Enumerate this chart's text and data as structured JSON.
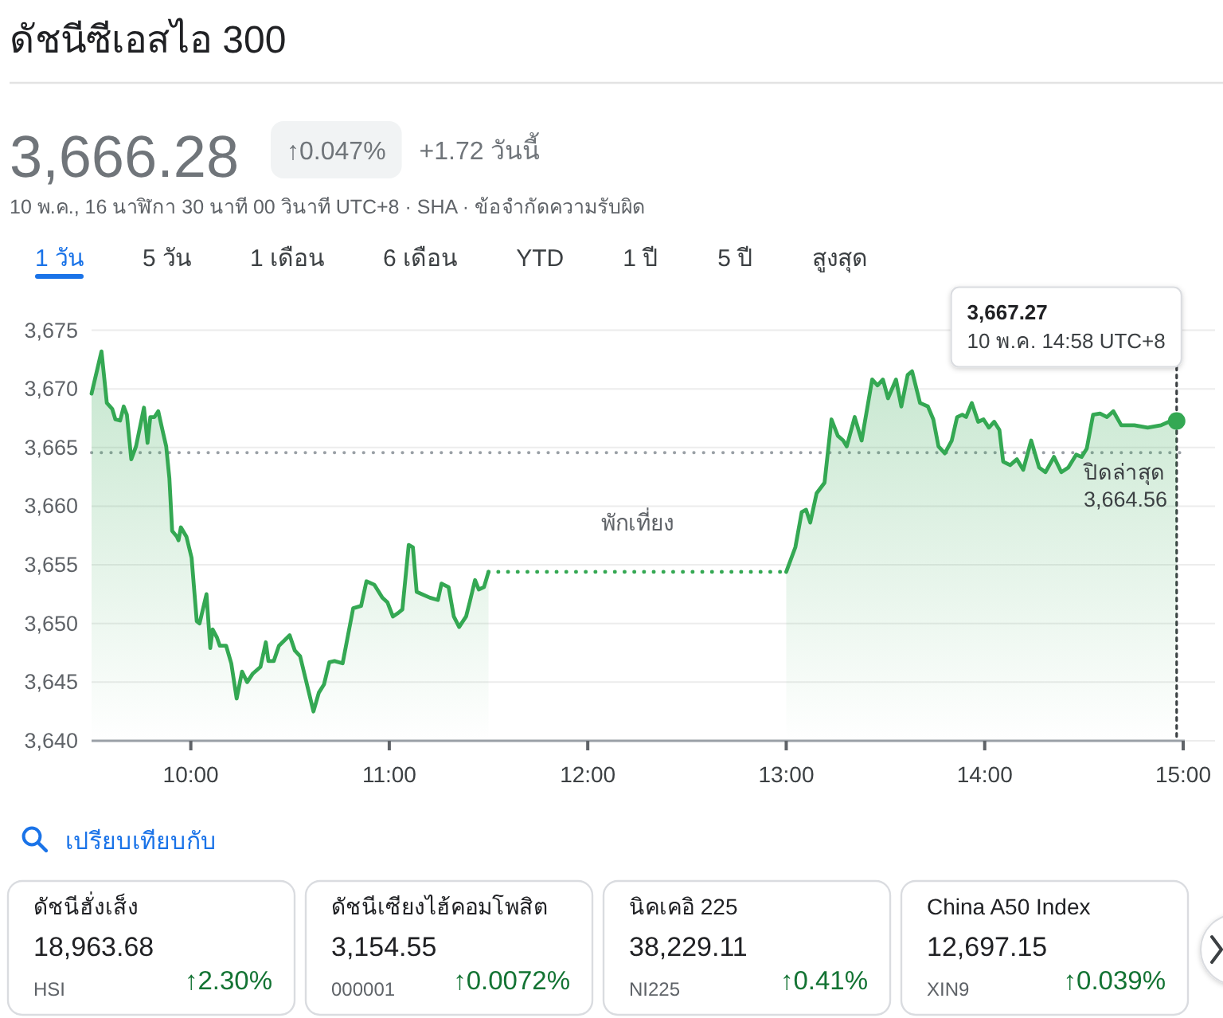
{
  "chart_data": [
    {
      "type": "area",
      "title": "ดัชนีซีเอสไอ 300",
      "annotations": [
        "3,666.28",
        "↑0.047%",
        "+1.72 วันนี้",
        "10 พ.ค., 16 นาฬิกา 30 นาที 00 วินาที UTC+8 · SHA · ข้อจำกัดความรับผิด",
        "1 วัน",
        "5 วัน",
        "1 เดือน",
        "6 เดือน",
        "YTD",
        "1 ปี",
        "5 ปี",
        "สูงสุด",
        "พักเที่ยง",
        "3,667.27\n10 พ.ค. 14:58 UTC+8"
      ],
      "xlim": [
        9.5,
        15
      ],
      "xticks": [
        {
          "value": 10,
          "label": "10:00"
        },
        {
          "value": 11,
          "label": "11:00"
        },
        {
          "value": 12,
          "label": "12:00"
        },
        {
          "value": 13,
          "label": "13:00"
        },
        {
          "value": 14,
          "label": "14:00"
        },
        {
          "value": 15,
          "label": "15:00"
        }
      ],
      "ylim": [
        3640,
        3675
      ],
      "yticks": [
        {
          "value": 3640,
          "label": "3,640"
        },
        {
          "value": 3645,
          "label": "3,645"
        },
        {
          "value": 3650,
          "label": "3,650"
        },
        {
          "value": 3655,
          "label": "3,655"
        },
        {
          "value": 3660,
          "label": "3,660"
        },
        {
          "value": 3665,
          "label": "3,665"
        },
        {
          "value": 3670,
          "label": "3,670"
        },
        {
          "value": 3675,
          "label": "3,675"
        }
      ],
      "grid": "y",
      "ref_lines": [
        {
          "axis": "y",
          "value": 3664.56,
          "label": "ปิดล่าสุด\n3,664.56",
          "color": "#9aa0a6",
          "line_style": "dotted"
        },
        {
          "axis": "x",
          "value": 14.967,
          "color": "#3c4043",
          "line_style": "dotted"
        }
      ],
      "series": [
        {
          "type": "area",
          "color": "#34a853",
          "x": [
            9.5,
            9.55,
            9.577,
            9.604,
            9.62,
            9.644,
            9.662,
            9.678,
            9.7,
            9.724,
            9.764,
            9.782,
            9.796,
            9.817,
            9.836,
            9.857,
            9.876,
            9.892,
            9.906,
            9.93,
            9.938,
            9.95,
            9.978,
            10.004,
            10.03,
            10.044,
            10.079,
            10.098,
            10.11,
            10.132,
            10.146,
            10.178,
            10.204,
            10.231,
            10.258,
            10.284,
            10.311,
            10.351,
            10.378,
            10.391,
            10.418,
            10.444,
            10.498,
            10.524,
            10.551,
            10.618,
            10.645,
            10.671,
            10.698,
            10.724,
            10.765,
            10.818,
            10.858,
            10.885,
            10.925,
            10.965,
            10.991,
            11.018,
            11.045,
            11.066,
            11.098,
            11.119,
            11.138,
            11.165,
            11.205,
            11.245,
            11.263,
            11.299,
            11.325,
            11.352,
            11.387,
            11.405,
            11.432,
            11.451,
            11.477,
            11.5
          ],
          "values": [
            3669.6,
            3673.2,
            3668.8,
            3668.3,
            3667.4,
            3667.3,
            3668.5,
            3667.8,
            3664.0,
            3665.1,
            3668.4,
            3665.4,
            3667.6,
            3667.6,
            3668.1,
            3666.5,
            3665.1,
            3662.4,
            3657.9,
            3657.4,
            3657.1,
            3658.2,
            3657.4,
            3655.6,
            3650.2,
            3650.0,
            3652.5,
            3647.9,
            3649.5,
            3648.8,
            3648.1,
            3648.1,
            3646.6,
            3643.6,
            3645.9,
            3645.0,
            3645.7,
            3646.3,
            3648.4,
            3646.8,
            3646.8,
            3648.1,
            3649.0,
            3647.7,
            3647.2,
            3642.5,
            3644.1,
            3644.8,
            3646.7,
            3646.8,
            3646.6,
            3651.3,
            3651.5,
            3653.6,
            3653.3,
            3652.2,
            3651.8,
            3650.6,
            3650.9,
            3651.2,
            3656.7,
            3656.5,
            3652.7,
            3652.5,
            3652.2,
            3652.0,
            3653.4,
            3653.1,
            3650.6,
            3649.7,
            3650.6,
            3651.8,
            3653.7,
            3652.9,
            3653.1,
            3654.4
          ]
        },
        {
          "type": "area",
          "color": "#34a853",
          "x": [
            13.0,
            13.046,
            13.078,
            13.1,
            13.121,
            13.153,
            13.193,
            13.228,
            13.26,
            13.287,
            13.305,
            13.345,
            13.38,
            13.433,
            13.46,
            13.487,
            13.513,
            13.553,
            13.58,
            13.612,
            13.634,
            13.674,
            13.714,
            13.741,
            13.767,
            13.799,
            13.834,
            13.861,
            13.887,
            13.906,
            13.935,
            13.967,
            13.994,
            14.021,
            14.048,
            14.074,
            14.093,
            14.128,
            14.162,
            14.194,
            14.234,
            14.274,
            14.306,
            14.349,
            14.386,
            14.421,
            14.461,
            14.488,
            14.514,
            14.546,
            14.581,
            14.616,
            14.648,
            14.688,
            14.754,
            14.821,
            14.888,
            14.928,
            14.967
          ],
          "values": [
            3654.4,
            3656.5,
            3659.5,
            3659.7,
            3658.6,
            3661.1,
            3662.0,
            3667.4,
            3666.0,
            3665.6,
            3665.1,
            3667.6,
            3665.6,
            3670.8,
            3670.3,
            3670.8,
            3669.2,
            3670.8,
            3668.5,
            3671.2,
            3671.5,
            3668.8,
            3668.5,
            3667.4,
            3665.1,
            3664.5,
            3665.6,
            3667.6,
            3667.8,
            3667.6,
            3668.8,
            3667.2,
            3667.4,
            3666.7,
            3667.2,
            3666.5,
            3663.8,
            3663.5,
            3664.0,
            3663.1,
            3665.6,
            3663.3,
            3662.9,
            3664.2,
            3662.9,
            3663.3,
            3664.4,
            3664.2,
            3664.9,
            3667.8,
            3667.9,
            3667.6,
            3668.1,
            3666.9,
            3666.9,
            3666.7,
            3666.9,
            3667.2,
            3667.3
          ]
        },
        {
          "type": "line",
          "line_style": "dotted",
          "color": "#34a853",
          "x": [
            11.5,
            13.0
          ],
          "values": [
            3654.4,
            3654.4
          ]
        },
        {
          "type": "scatter",
          "marker": "circle",
          "color": "#34a853",
          "x": [
            14.967
          ],
          "values": [
            3667.27
          ]
        }
      ]
    },
    {
      "type": "other",
      "title": "เปรียบเทียบกับ",
      "annotations": [
        "ดัชนีฮั่งเส็ง",
        "18,963.68",
        "HSI",
        "↑2.30%",
        "ดัชนีเซียงไฮ้คอมโพสิต",
        "3,154.55",
        "000001",
        "↑0.0072%",
        "นิคเคอิ 225",
        "38,229.11",
        "NI225",
        "↑0.41%",
        "China A50 Index",
        "12,697.15",
        "XIN9",
        "↑0.039%"
      ]
    }
  ]
}
